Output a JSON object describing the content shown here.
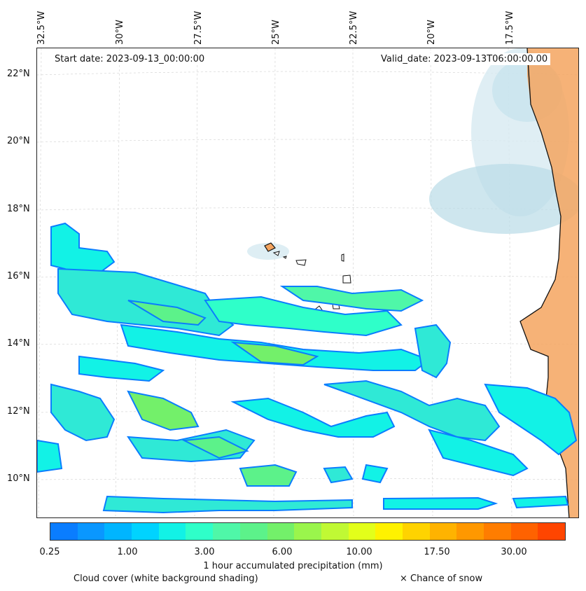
{
  "map": {
    "start_date": "Start date: 2023-09-13_00:00:00",
    "valid_date": "Valid_date: 2023-09-13T06:00:00.00",
    "lon_labels": [
      "32.5°W",
      "30°W",
      "27.5°W",
      "25°W",
      "22.5°W",
      "20°W",
      "17.5°W"
    ],
    "lat_labels": [
      "22°N",
      "20°N",
      "18°N",
      "16°N",
      "14°N",
      "12°N",
      "10°N"
    ]
  },
  "colorbar": {
    "title": "1 hour accumulated precipitation (mm)",
    "ticks": [
      "0.25",
      "1.00",
      "3.00",
      "6.00",
      "10.00",
      "17.50",
      "30.00"
    ],
    "colors": [
      "#0a7dff",
      "#0a97ff",
      "#00b5ff",
      "#00d3ff",
      "#12f2e6",
      "#2fffc9",
      "#4ff7a8",
      "#5cf28a",
      "#73f06a",
      "#9af54c",
      "#c0f934",
      "#e3ff1a",
      "#fff200",
      "#ffd300",
      "#ffb300",
      "#ff9800",
      "#ff7d00",
      "#ff6200",
      "#ff4500"
    ]
  },
  "legend": {
    "cloud_cover": "Cloud cover (white background shading)",
    "snow": "× Chance of snow"
  }
}
